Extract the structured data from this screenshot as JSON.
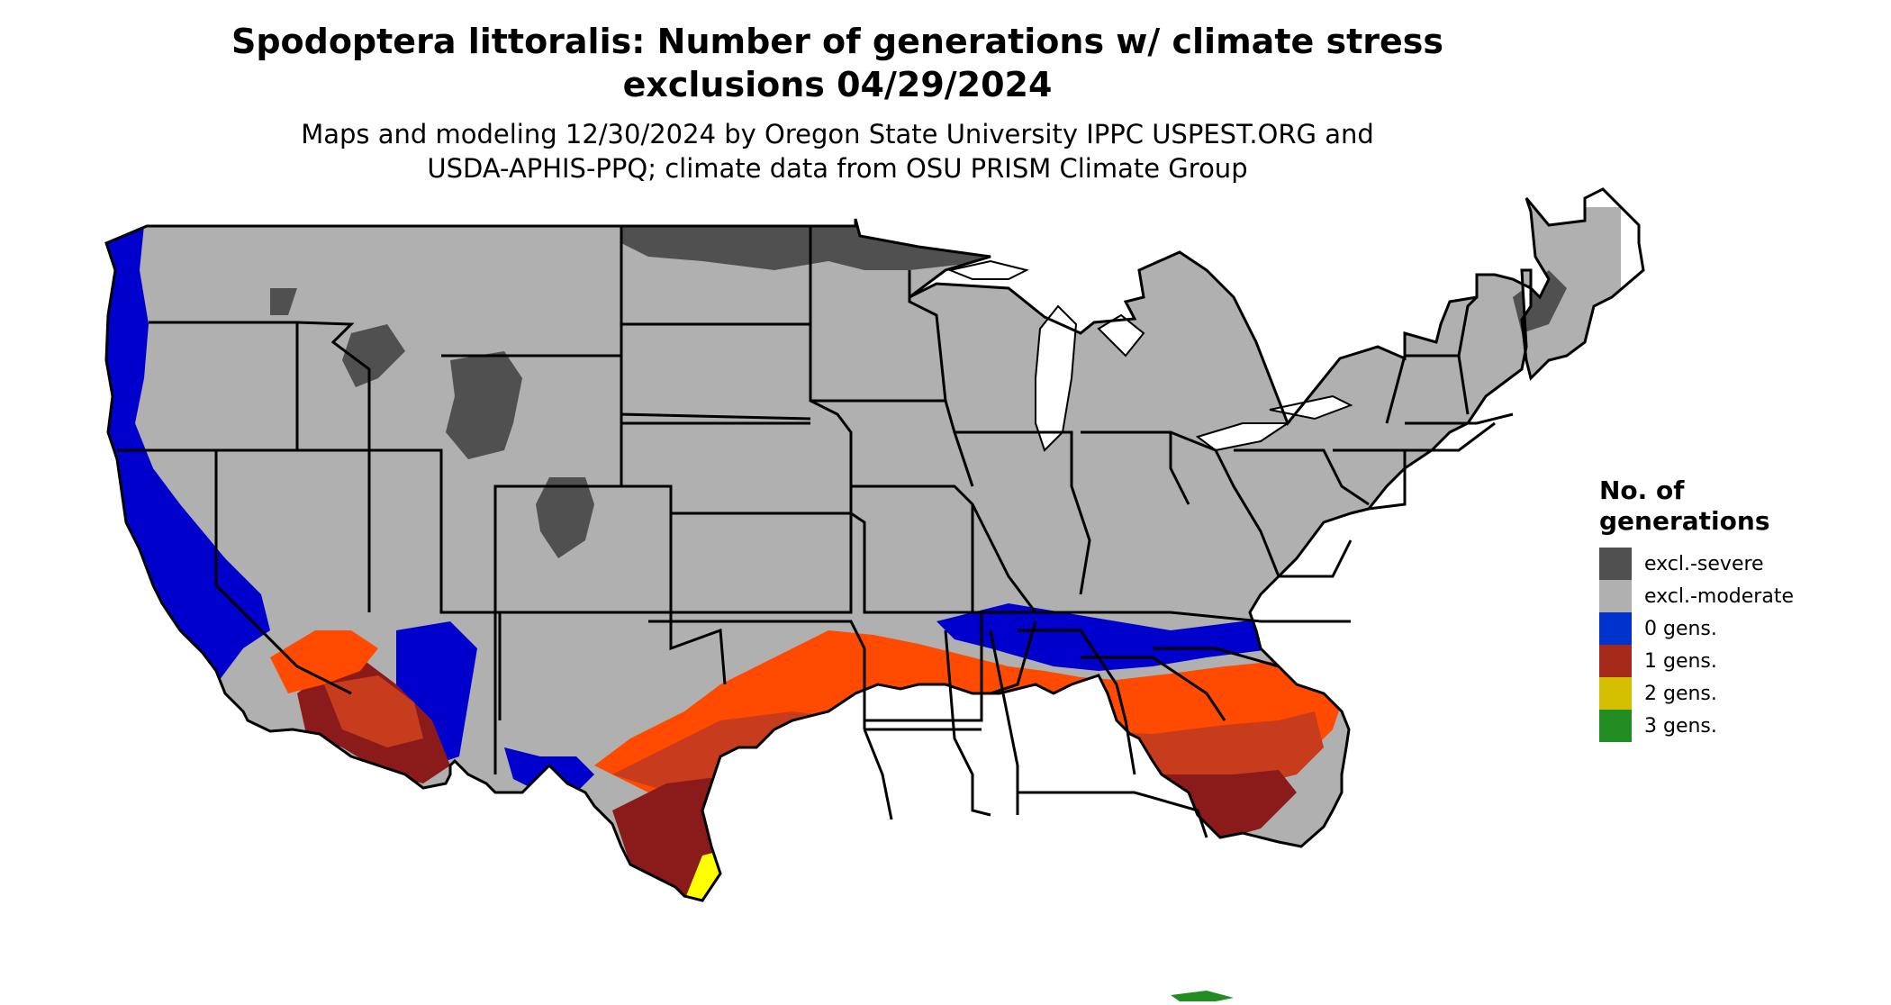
{
  "title": {
    "line1": "Spodoptera littoralis: Number of generations w/ climate stress",
    "line2": "exclusions 04/29/2024"
  },
  "subtitle": {
    "line1": "Maps and modeling 12/30/2024 by Oregon State University IPPC USPEST.ORG and",
    "line2": "USDA-APHIS-PPQ; climate data from OSU PRISM Climate Group"
  },
  "legend": {
    "title_line1": "No. of",
    "title_line2": "generations",
    "items": [
      {
        "label": "excl.-severe",
        "color": "#505050"
      },
      {
        "label": "excl.-moderate",
        "color": "#b0b0b0"
      },
      {
        "label": "0 gens.",
        "color": "#0033cc"
      },
      {
        "label": "1 gens.",
        "color": "#a52a1a"
      },
      {
        "label": "2 gens.",
        "color": "#d4c000"
      },
      {
        "label": "3 gens.",
        "color": "#228b22"
      }
    ]
  },
  "map_colors": {
    "excl_severe": "#505050",
    "excl_moderate": "#b0b0b0",
    "zero_gens": "#0000cc",
    "one_gen_dark": "#8b1a1a",
    "one_gen_mid": "#c83c1e",
    "one_gen_light": "#ff4a00",
    "two_gens": "#d4b800",
    "two_gens_light": "#ffff00",
    "three_gens": "#228b22",
    "state_borders": "#000000"
  }
}
